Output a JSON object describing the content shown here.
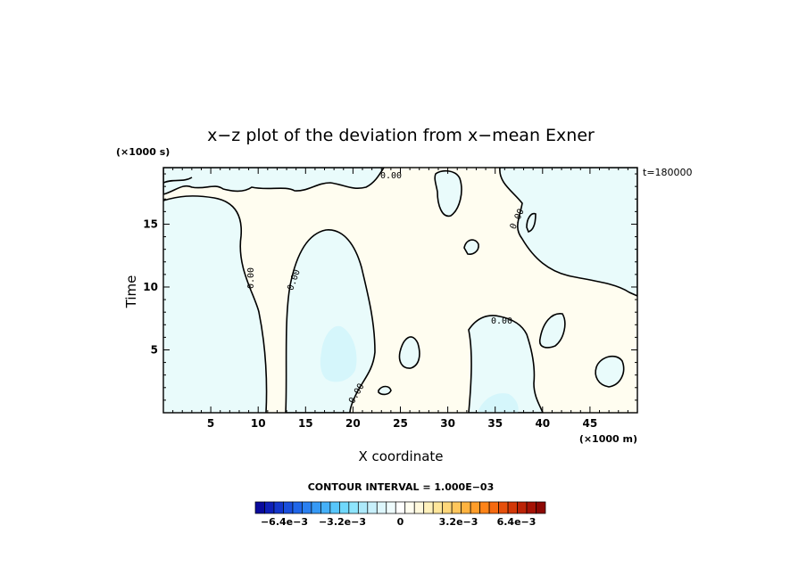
{
  "chart_data": {
    "type": "heatmap",
    "title": "x−z plot of the deviation from x−mean Exner",
    "xlabel": "X coordinate",
    "ylabel": "Time",
    "x_units": "(×1000 m)",
    "y_units": "(×1000 s)",
    "time_stamp": "t=180000",
    "xlim": [
      0,
      50
    ],
    "ylim": [
      0,
      19.5
    ],
    "x_ticks": [
      5,
      10,
      15,
      20,
      25,
      30,
      35,
      40,
      45
    ],
    "y_ticks": [
      5,
      10,
      15
    ],
    "contour_value_label": "0.00",
    "contour_interval_text": "CONTOUR INTERVAL = 1.000E−03",
    "colorbar": {
      "min": -0.008,
      "max": 0.008,
      "tick_labels": [
        "−6.4e−3",
        "−3.2e−3",
        "0",
        "3.2e−3",
        "6.4e−3"
      ],
      "tick_values": [
        -0.0064,
        -0.0032,
        0,
        0.0032,
        0.0064
      ],
      "colors": [
        "#0a0a9c",
        "#0f1fb8",
        "#1436cc",
        "#1a4fdc",
        "#2066e8",
        "#2a80f0",
        "#3699f5",
        "#45b0f8",
        "#58c6fb",
        "#70d8fc",
        "#8ee5fd",
        "#ade9fa",
        "#c8f0fb",
        "#ddf6fc",
        "#eefbfd",
        "#ffffff",
        "#fffdf0",
        "#fff8dc",
        "#fff1bc",
        "#ffe69a",
        "#ffd77a",
        "#ffc65c",
        "#ffb340",
        "#ff9d2a",
        "#ff8418",
        "#f56a10",
        "#e6500c",
        "#d23808",
        "#bc2306",
        "#a51205",
        "#8c0804"
      ]
    },
    "regions": [
      {
        "sign": "negative",
        "level": "weak",
        "description_color": "#e9fbfb"
      },
      {
        "sign": "positive",
        "level": "weak",
        "description_color": "#fffdf0"
      }
    ]
  }
}
